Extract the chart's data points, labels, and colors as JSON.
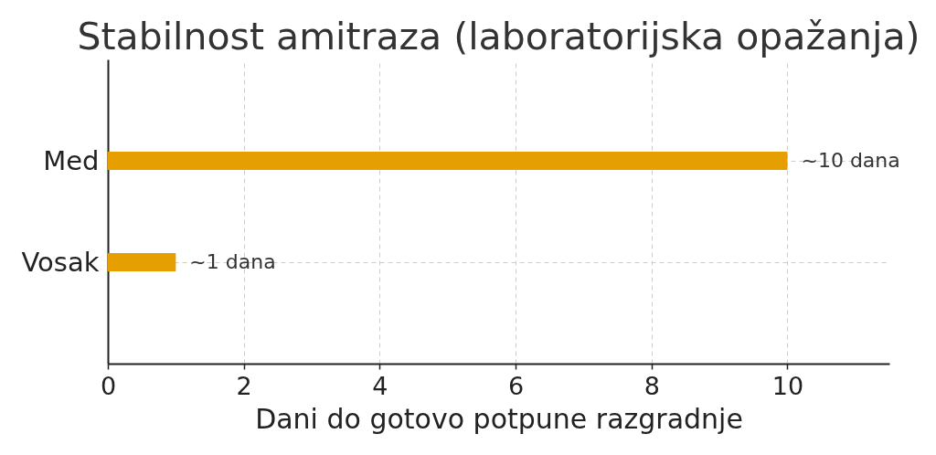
{
  "chart_data": {
    "type": "bar",
    "orientation": "horizontal",
    "title": "Stabilnost amitraza (laboratorijska opažanja)",
    "xlabel": "Dani do gotovo potpune razgradnje",
    "categories": [
      "Med",
      "Vosak"
    ],
    "values": [
      10,
      1
    ],
    "value_labels": [
      "~10 dana",
      "~1 dana"
    ],
    "color": "#e69f00",
    "xlim": [
      0,
      11.5
    ],
    "xticks": [
      0,
      2,
      4,
      6,
      8,
      10
    ],
    "grid": true
  }
}
